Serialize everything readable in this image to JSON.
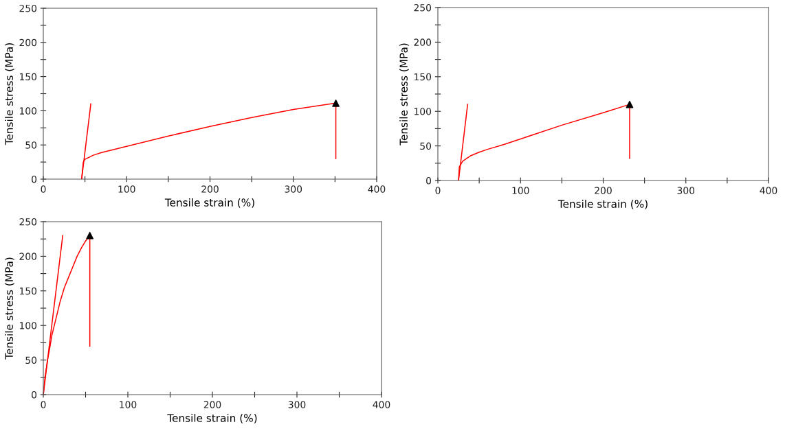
{
  "chart_data": [
    {
      "type": "line",
      "xlabel": "Tensile strain (%)",
      "ylabel": "Tensile stress (MPa)",
      "xlim": [
        0,
        400
      ],
      "ylim": [
        0,
        250
      ],
      "xticks": [
        0,
        {
          "value": 50,
          "label": null
        },
        100,
        {
          "value": 150,
          "label": null
        },
        200,
        {
          "value": 250,
          "label": null
        },
        300,
        {
          "value": 350,
          "label": null
        },
        400
      ],
      "yticks": [
        0,
        {
          "value": 25,
          "label": null
        },
        50,
        {
          "value": 75,
          "label": null
        },
        100,
        {
          "value": 125,
          "label": null
        },
        150,
        {
          "value": 175,
          "label": null
        },
        200,
        {
          "value": 225,
          "label": null
        },
        250
      ],
      "series": [
        {
          "color": "#ff0000",
          "x": [
            46,
            48,
            50,
            55,
            60,
            70,
            80,
            100,
            150,
            200,
            250,
            300,
            350
          ],
          "values": [
            0,
            25,
            29,
            32,
            35,
            39,
            42,
            48,
            63,
            77,
            90,
            102,
            111
          ]
        },
        {
          "color": "#ff0000",
          "x": [
            46,
            57
          ],
          "values": [
            0,
            110
          ]
        },
        {
          "color": "#ff0000",
          "x": [
            351,
            351
          ],
          "values": [
            30,
            111
          ]
        },
        {
          "type": "scatter",
          "color": "#000000",
          "marker": "triangle",
          "x": [
            351
          ],
          "values": [
            111
          ]
        }
      ]
    },
    {
      "type": "line",
      "xlabel": "Tensile strain (%)",
      "ylabel": "Tensile stress (MPa)",
      "xlim": [
        0,
        400
      ],
      "ylim": [
        0,
        250
      ],
      "xticks": [
        0,
        {
          "value": 50,
          "label": null
        },
        100,
        {
          "value": 150,
          "label": null
        },
        200,
        {
          "value": 250,
          "label": null
        },
        300,
        {
          "value": 350,
          "label": null
        },
        400
      ],
      "yticks": [
        0,
        {
          "value": 25,
          "label": null
        },
        50,
        {
          "value": 75,
          "label": null
        },
        100,
        {
          "value": 125,
          "label": null
        },
        150,
        {
          "value": 175,
          "label": null
        },
        200,
        {
          "value": 225,
          "label": null
        },
        250
      ],
      "series": [
        {
          "color": "#ff0000",
          "x": [
            25,
            26,
            30,
            40,
            50,
            60,
            80,
            100,
            150,
            200,
            232
          ],
          "values": [
            0,
            20,
            28,
            36,
            41,
            45,
            52,
            60,
            80,
            98,
            110
          ]
        },
        {
          "color": "#ff0000",
          "x": [
            25,
            36
          ],
          "values": [
            0,
            110
          ]
        },
        {
          "color": "#ff0000",
          "x": [
            232,
            232
          ],
          "values": [
            32,
            110
          ]
        },
        {
          "type": "scatter",
          "color": "#000000",
          "marker": "triangle",
          "x": [
            232
          ],
          "values": [
            110
          ]
        }
      ]
    },
    {
      "type": "line",
      "xlabel": "Tensile strain (%)",
      "ylabel": "Tensile stress (MPa)",
      "xlim": [
        0,
        400
      ],
      "ylim": [
        0,
        250
      ],
      "xticks": [
        0,
        {
          "value": 50,
          "label": null
        },
        100,
        {
          "value": 150,
          "label": null
        },
        200,
        {
          "value": 250,
          "label": null
        },
        300,
        {
          "value": 350,
          "label": null
        },
        400
      ],
      "yticks": [
        0,
        {
          "value": 25,
          "label": null
        },
        50,
        {
          "value": 75,
          "label": null
        },
        100,
        {
          "value": 125,
          "label": null
        },
        150,
        {
          "value": 175,
          "label": null
        },
        200,
        {
          "value": 225,
          "label": null
        },
        250
      ],
      "series": [
        {
          "color": "#ff0000",
          "x": [
            0,
            2,
            5,
            8,
            10,
            15,
            20,
            25,
            30,
            35,
            40,
            45,
            50,
            55
          ],
          "values": [
            0,
            25,
            50,
            70,
            85,
            110,
            135,
            155,
            170,
            185,
            200,
            212,
            222,
            230
          ]
        },
        {
          "color": "#ff0000",
          "x": [
            0,
            23
          ],
          "values": [
            0,
            230
          ]
        },
        {
          "color": "#ff0000",
          "x": [
            55,
            55
          ],
          "values": [
            70,
            230
          ]
        },
        {
          "type": "scatter",
          "color": "#000000",
          "marker": "triangle",
          "x": [
            55
          ],
          "values": [
            230
          ]
        }
      ]
    }
  ]
}
